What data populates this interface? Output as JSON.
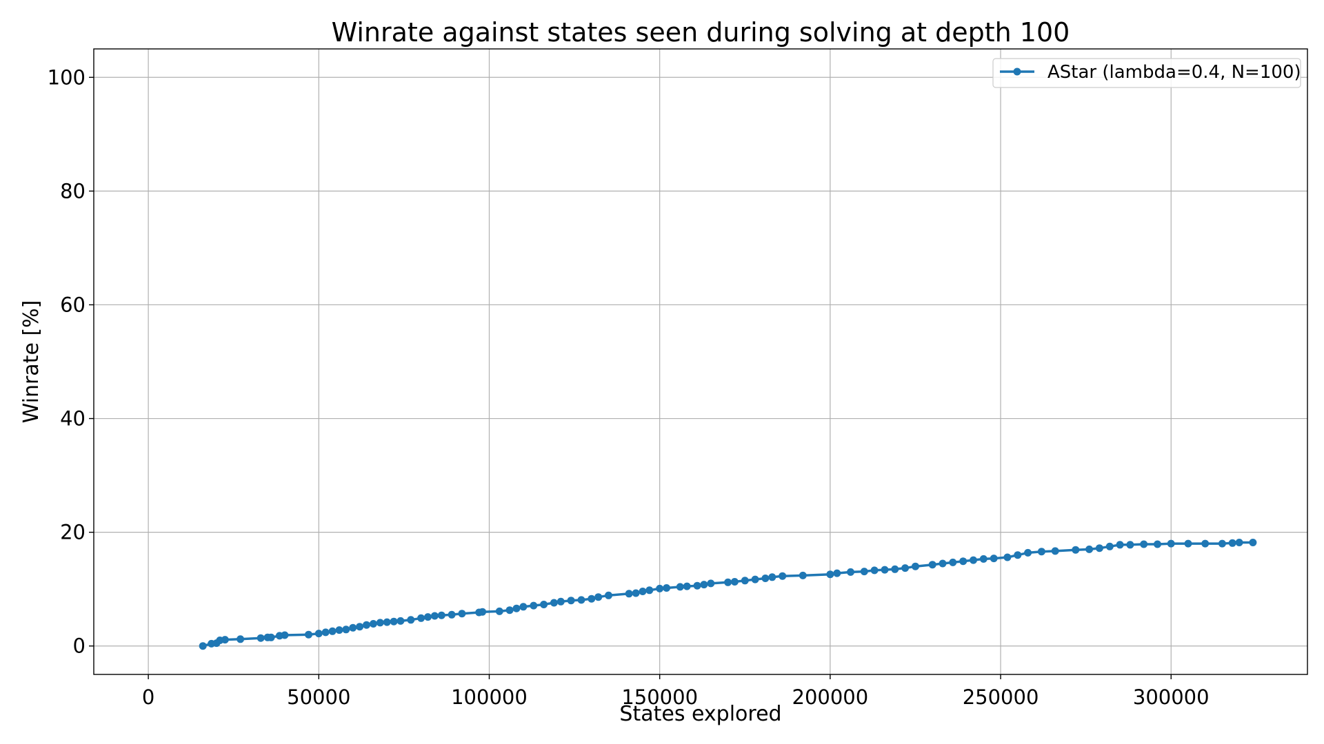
{
  "chart_data": {
    "type": "line",
    "title": "Winrate against states seen during solving at depth 100",
    "xlabel": "States explored",
    "ylabel": "Winrate [%]",
    "xlim": [
      -16000,
      340000
    ],
    "ylim": [
      -5,
      105
    ],
    "xticks": [
      0,
      50000,
      100000,
      150000,
      200000,
      250000,
      300000
    ],
    "xtick_labels": [
      "0",
      "50000",
      "100000",
      "150000",
      "200000",
      "250000",
      "300000"
    ],
    "yticks": [
      0,
      20,
      40,
      60,
      80,
      100
    ],
    "ytick_labels": [
      "0",
      "20",
      "40",
      "60",
      "80",
      "100"
    ],
    "grid": true,
    "legend": {
      "position": "top-right"
    },
    "series": [
      {
        "name": "AStar (lambda=0.4, N=100)",
        "color": "#1f77b4",
        "marker": "circle",
        "x": [
          16000,
          18500,
          20000,
          21000,
          22500,
          27000,
          33000,
          35000,
          36000,
          38500,
          40000,
          47000,
          50000,
          52000,
          54000,
          56000,
          58000,
          60000,
          62000,
          64000,
          66000,
          68000,
          70000,
          72000,
          74000,
          77000,
          80000,
          82000,
          84000,
          86000,
          89000,
          92000,
          97000,
          98000,
          103000,
          106000,
          108000,
          110000,
          113000,
          116000,
          119000,
          121000,
          124000,
          127000,
          130000,
          132000,
          135000,
          141000,
          143000,
          145000,
          147000,
          150000,
          152000,
          156000,
          158000,
          161000,
          163000,
          165000,
          170000,
          172000,
          175000,
          178000,
          181000,
          183000,
          186000,
          192000,
          200000,
          202000,
          206000,
          210000,
          213000,
          216000,
          219000,
          222000,
          225000,
          230000,
          233000,
          236000,
          239000,
          242000,
          245000,
          248000,
          252000,
          255000,
          258000,
          262000,
          266000,
          272000,
          276000,
          279000,
          282000,
          285000,
          288000,
          292000,
          296000,
          300000,
          305000,
          310000,
          315000,
          318000,
          320000,
          324000
        ],
        "y": [
          0,
          0.4,
          0.5,
          1.0,
          1.1,
          1.2,
          1.4,
          1.5,
          1.5,
          1.8,
          1.9,
          2.0,
          2.2,
          2.4,
          2.6,
          2.8,
          2.9,
          3.2,
          3.4,
          3.7,
          3.9,
          4.1,
          4.2,
          4.3,
          4.4,
          4.6,
          4.9,
          5.1,
          5.3,
          5.4,
          5.5,
          5.7,
          5.9,
          6.0,
          6.1,
          6.3,
          6.6,
          6.9,
          7.1,
          7.3,
          7.6,
          7.8,
          8.0,
          8.1,
          8.3,
          8.6,
          8.9,
          9.2,
          9.3,
          9.6,
          9.8,
          10.1,
          10.2,
          10.4,
          10.5,
          10.6,
          10.8,
          11.0,
          11.2,
          11.3,
          11.5,
          11.7,
          11.9,
          12.1,
          12.3,
          12.4,
          12.6,
          12.8,
          13.0,
          13.1,
          13.3,
          13.4,
          13.5,
          13.7,
          14.0,
          14.3,
          14.5,
          14.7,
          14.9,
          15.1,
          15.3,
          15.4,
          15.6,
          16.0,
          16.4,
          16.6,
          16.7,
          16.9,
          17.0,
          17.2,
          17.5,
          17.8,
          17.8,
          17.9,
          17.9,
          18.0,
          18.0,
          18.0,
          18.0,
          18.1,
          18.2,
          18.2
        ]
      }
    ]
  }
}
